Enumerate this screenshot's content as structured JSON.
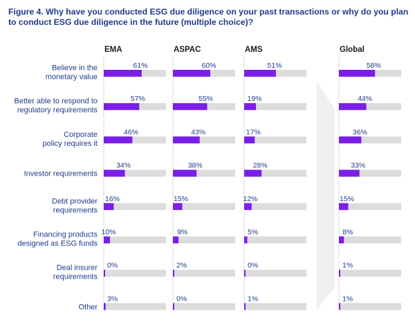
{
  "chart_data": {
    "type": "bar",
    "title": "Figure 4. Why have you conducted ESG due diligence on your past transactions or why do you plan to conduct ESG due diligence in the future (multiple choice)?",
    "categories": [
      [
        "Believe in the",
        "monetary value"
      ],
      [
        "Better able to respond to",
        "regulatory requirements"
      ],
      [
        "Corporate",
        "policy requires it"
      ],
      [
        "Investor requirements"
      ],
      [
        "Debt provider",
        "requirements"
      ],
      [
        "Financing products",
        "designed as ESG funds"
      ],
      [
        "Deal insurer",
        "requirements"
      ],
      [
        "Other"
      ]
    ],
    "series": [
      {
        "name": "EMA",
        "values": [
          61,
          57,
          46,
          34,
          16,
          10,
          0,
          3
        ]
      },
      {
        "name": "ASPAC",
        "values": [
          60,
          55,
          43,
          38,
          15,
          9,
          2,
          0
        ]
      },
      {
        "name": "AMS",
        "values": [
          51,
          19,
          17,
          28,
          12,
          5,
          0,
          1
        ]
      },
      {
        "name": "Global",
        "values": [
          58,
          44,
          36,
          33,
          15,
          8,
          1,
          1
        ]
      }
    ],
    "unit": "%",
    "xlim": [
      0,
      100
    ],
    "colors": {
      "bar": "#7b1fe8",
      "track": "#dcdcdc",
      "text": "#1f3b8a",
      "arrow": "#efefef",
      "divider": "#9a9a9a"
    }
  }
}
